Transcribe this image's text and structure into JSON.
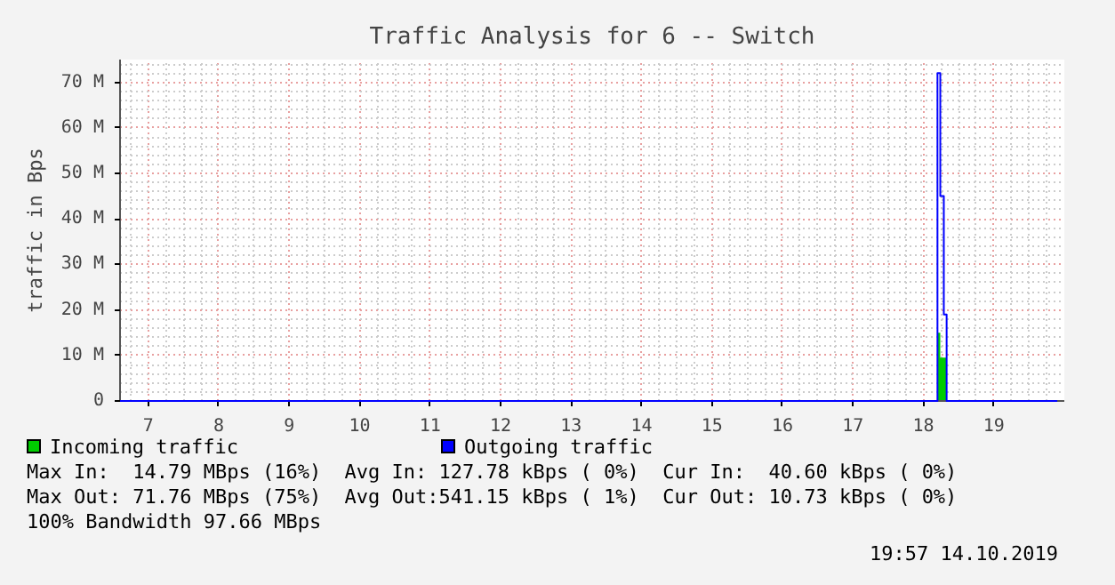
{
  "chart_data": {
    "type": "step",
    "title": "Traffic Analysis for 6 -- Switch",
    "ylabel": "traffic in Bps",
    "xlim": [
      6.6,
      20.0
    ],
    "xticks": [
      7,
      8,
      9,
      10,
      11,
      12,
      13,
      14,
      15,
      16,
      17,
      18,
      19
    ],
    "ylim": [
      0,
      75
    ],
    "yticks": [
      {
        "value": 0,
        "label": "0"
      },
      {
        "value": 10,
        "label": "10 M"
      },
      {
        "value": 20,
        "label": "20 M"
      },
      {
        "value": 30,
        "label": "30 M"
      },
      {
        "value": 40,
        "label": "40 M"
      },
      {
        "value": 50,
        "label": "50 M"
      },
      {
        "value": 60,
        "label": "60 M"
      },
      {
        "value": 70,
        "label": "70 M"
      }
    ],
    "grid": true,
    "legend": "bottom",
    "series": [
      {
        "name": "Incoming traffic",
        "type": "area",
        "color": "#00cc00",
        "x": [
          6.6,
          18.2,
          18.24,
          18.29,
          18.33,
          19.9
        ],
        "values": [
          0,
          15,
          9.5,
          9.5,
          0,
          0
        ]
      },
      {
        "name": "Outgoing traffic",
        "color": "#0000ff",
        "x": [
          6.6,
          18.2,
          18.24,
          18.29,
          18.33,
          19.9
        ],
        "values": [
          0,
          72,
          45,
          19,
          0,
          0
        ]
      }
    ],
    "annotations": [
      "Max In:  14.79 MBps (16%)  Avg In: 127.78 kBps ( 0%)  Cur In:  40.60 kBps ( 0%)",
      "Max Out: 71.76 MBps (75%)  Avg Out:541.15 kBps ( 1%)  Cur Out: 10.73 kBps ( 0%)",
      "100% Bandwidth 97.66 MBps",
      "19:57 14.10.2019"
    ]
  }
}
